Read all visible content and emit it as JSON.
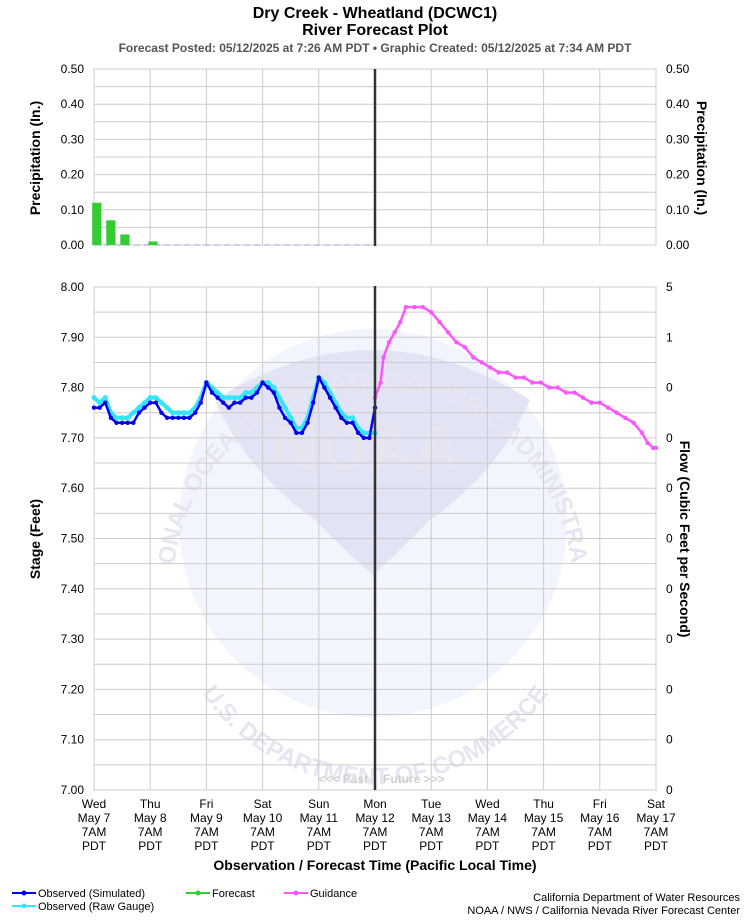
{
  "header": {
    "title": "Dry Creek - Wheatland (DCWC1)",
    "subtitle": "River Forecast Plot",
    "posted": "Forecast Posted: 05/12/2025 at 7:26 AM PDT  •  Graphic Created: 05/12/2025 at 7:34 AM PDT"
  },
  "watermark": {
    "logo_text": "NOAA",
    "ring_top": "NATIONAL OCEANIC AND ATMOSPHERIC ADMINISTRATION",
    "ring_bottom": "U.S. DEPARTMENT OF COMMERCE"
  },
  "past_future": {
    "past": "<<< Past",
    "future": "Future >>>"
  },
  "credits": {
    "line1": "California Department of Water Resources",
    "line2": "NOAA / NWS / California Nevada River Forecast Center"
  },
  "colors": {
    "observed_simulated": "#0000ee",
    "observed_raw": "#33e6ff",
    "forecast": "#33cc33",
    "guidance": "#ff55ff",
    "now_line": "#333333",
    "grid": "#cccccc"
  },
  "chart_data": [
    {
      "type": "bar",
      "panel": "precipitation",
      "ylabel": "Precipitation (In.)",
      "ylabel_right": "Precipitation (In.)",
      "ylim": [
        0,
        0.5
      ],
      "yticks": [
        "0.00",
        "0.10",
        "0.20",
        "0.30",
        "0.40",
        "0.50"
      ],
      "xlim_days": [
        0,
        10
      ],
      "bar_width_days": 0.2,
      "bars": [
        {
          "x": 0.05,
          "value": 0.12
        },
        {
          "x": 0.3,
          "value": 0.07
        },
        {
          "x": 0.55,
          "value": 0.03
        },
        {
          "x": 1.05,
          "value": 0.01
        }
      ]
    },
    {
      "type": "line",
      "panel": "stage",
      "xlabel": "Observation / Forecast Time (Pacific Local Time)",
      "ylabel": "Stage (Feet)",
      "ylabel_right": "Flow (Cubic Feet per Second)",
      "ylim": [
        7.0,
        8.0
      ],
      "yticks": [
        "7.00",
        "7.10",
        "7.20",
        "7.30",
        "7.40",
        "7.50",
        "7.60",
        "7.70",
        "7.80",
        "7.90",
        "8.00"
      ],
      "yticks_right": [
        "0",
        "0",
        "0",
        "0",
        "0",
        "0",
        "0",
        "0",
        "0",
        "1",
        "5"
      ],
      "xticks": [
        [
          "Wed",
          "May 7",
          "7AM",
          "PDT"
        ],
        [
          "Thu",
          "May 8",
          "7AM",
          "PDT"
        ],
        [
          "Fri",
          "May 9",
          "7AM",
          "PDT"
        ],
        [
          "Sat",
          "May 10",
          "7AM",
          "PDT"
        ],
        [
          "Sun",
          "May 11",
          "7AM",
          "PDT"
        ],
        [
          "Mon",
          "May 12",
          "7AM",
          "PDT"
        ],
        [
          "Tue",
          "May 13",
          "7AM",
          "PDT"
        ],
        [
          "Wed",
          "May 14",
          "7AM",
          "PDT"
        ],
        [
          "Thu",
          "May 15",
          "7AM",
          "PDT"
        ],
        [
          "Fri",
          "May 16",
          "7AM",
          "PDT"
        ],
        [
          "Sat",
          "May 17",
          "7AM",
          "PDT"
        ]
      ],
      "xlim_days": [
        0,
        10
      ],
      "now_day": 5,
      "legend": [
        {
          "name": "Observed (Simulated)",
          "color": "#0000ee"
        },
        {
          "name": "Observed (Raw Gauge)",
          "color": "#33e6ff"
        },
        {
          "name": "Forecast",
          "color": "#33cc33"
        },
        {
          "name": "Guidance",
          "color": "#ff55ff"
        }
      ],
      "series": [
        {
          "name": "Observed (Raw Gauge)",
          "color": "#33e6ff",
          "points": [
            [
              0,
              7.78
            ],
            [
              0.1,
              7.77
            ],
            [
              0.2,
              7.78
            ],
            [
              0.3,
              7.75
            ],
            [
              0.4,
              7.74
            ],
            [
              0.5,
              7.74
            ],
            [
              0.6,
              7.74
            ],
            [
              0.7,
              7.75
            ],
            [
              0.8,
              7.76
            ],
            [
              0.9,
              7.77
            ],
            [
              1.0,
              7.78
            ],
            [
              1.1,
              7.78
            ],
            [
              1.2,
              7.77
            ],
            [
              1.3,
              7.76
            ],
            [
              1.4,
              7.75
            ],
            [
              1.5,
              7.75
            ],
            [
              1.6,
              7.75
            ],
            [
              1.7,
              7.75
            ],
            [
              1.8,
              7.76
            ],
            [
              1.9,
              7.78
            ],
            [
              2.0,
              7.81
            ],
            [
              2.1,
              7.8
            ],
            [
              2.2,
              7.79
            ],
            [
              2.3,
              7.78
            ],
            [
              2.4,
              7.78
            ],
            [
              2.5,
              7.78
            ],
            [
              2.6,
              7.78
            ],
            [
              2.7,
              7.79
            ],
            [
              2.8,
              7.79
            ],
            [
              2.9,
              7.8
            ],
            [
              3.0,
              7.81
            ],
            [
              3.1,
              7.81
            ],
            [
              3.2,
              7.8
            ],
            [
              3.3,
              7.78
            ],
            [
              3.4,
              7.76
            ],
            [
              3.5,
              7.74
            ],
            [
              3.6,
              7.72
            ],
            [
              3.7,
              7.72
            ],
            [
              3.8,
              7.74
            ],
            [
              3.9,
              7.78
            ],
            [
              4.0,
              7.82
            ],
            [
              4.1,
              7.81
            ],
            [
              4.2,
              7.79
            ],
            [
              4.3,
              7.77
            ],
            [
              4.4,
              7.75
            ],
            [
              4.5,
              7.74
            ],
            [
              4.6,
              7.74
            ],
            [
              4.7,
              7.72
            ],
            [
              4.8,
              7.71
            ],
            [
              4.9,
              7.71
            ],
            [
              5.0,
              7.71
            ]
          ]
        },
        {
          "name": "Observed (Simulated)",
          "color": "#0000ee",
          "points": [
            [
              0,
              7.76
            ],
            [
              0.1,
              7.76
            ],
            [
              0.2,
              7.77
            ],
            [
              0.3,
              7.74
            ],
            [
              0.4,
              7.73
            ],
            [
              0.5,
              7.73
            ],
            [
              0.6,
              7.73
            ],
            [
              0.7,
              7.73
            ],
            [
              0.8,
              7.75
            ],
            [
              0.9,
              7.76
            ],
            [
              1.0,
              7.77
            ],
            [
              1.1,
              7.77
            ],
            [
              1.2,
              7.75
            ],
            [
              1.3,
              7.74
            ],
            [
              1.4,
              7.74
            ],
            [
              1.5,
              7.74
            ],
            [
              1.6,
              7.74
            ],
            [
              1.7,
              7.74
            ],
            [
              1.8,
              7.75
            ],
            [
              1.9,
              7.77
            ],
            [
              2.0,
              7.81
            ],
            [
              2.1,
              7.79
            ],
            [
              2.2,
              7.78
            ],
            [
              2.3,
              7.77
            ],
            [
              2.4,
              7.76
            ],
            [
              2.5,
              7.77
            ],
            [
              2.6,
              7.77
            ],
            [
              2.7,
              7.78
            ],
            [
              2.8,
              7.78
            ],
            [
              2.9,
              7.79
            ],
            [
              3.0,
              7.81
            ],
            [
              3.1,
              7.8
            ],
            [
              3.2,
              7.79
            ],
            [
              3.3,
              7.76
            ],
            [
              3.4,
              7.74
            ],
            [
              3.5,
              7.73
            ],
            [
              3.6,
              7.71
            ],
            [
              3.7,
              7.71
            ],
            [
              3.8,
              7.73
            ],
            [
              3.9,
              7.77
            ],
            [
              4.0,
              7.82
            ],
            [
              4.1,
              7.8
            ],
            [
              4.2,
              7.78
            ],
            [
              4.3,
              7.76
            ],
            [
              4.4,
              7.74
            ],
            [
              4.5,
              7.73
            ],
            [
              4.6,
              7.73
            ],
            [
              4.7,
              7.71
            ],
            [
              4.8,
              7.7
            ],
            [
              4.9,
              7.7
            ],
            [
              5.0,
              7.76
            ]
          ]
        },
        {
          "name": "Guidance",
          "color": "#ff55ff",
          "points": [
            [
              5.0,
              7.78
            ],
            [
              5.1,
              7.81
            ],
            [
              5.15,
              7.86
            ],
            [
              5.25,
              7.89
            ],
            [
              5.35,
              7.91
            ],
            [
              5.45,
              7.93
            ],
            [
              5.55,
              7.96
            ],
            [
              5.7,
              7.96
            ],
            [
              5.85,
              7.96
            ],
            [
              6.0,
              7.95
            ],
            [
              6.15,
              7.93
            ],
            [
              6.3,
              7.91
            ],
            [
              6.45,
              7.89
            ],
            [
              6.6,
              7.88
            ],
            [
              6.75,
              7.86
            ],
            [
              6.9,
              7.85
            ],
            [
              7.05,
              7.84
            ],
            [
              7.2,
              7.83
            ],
            [
              7.35,
              7.83
            ],
            [
              7.5,
              7.82
            ],
            [
              7.65,
              7.82
            ],
            [
              7.8,
              7.81
            ],
            [
              7.95,
              7.81
            ],
            [
              8.1,
              7.8
            ],
            [
              8.25,
              7.8
            ],
            [
              8.4,
              7.79
            ],
            [
              8.55,
              7.79
            ],
            [
              8.7,
              7.78
            ],
            [
              8.85,
              7.77
            ],
            [
              9.0,
              7.77
            ],
            [
              9.15,
              7.76
            ],
            [
              9.3,
              7.75
            ],
            [
              9.45,
              7.74
            ],
            [
              9.6,
              7.73
            ],
            [
              9.75,
              7.71
            ],
            [
              9.85,
              7.69
            ],
            [
              9.95,
              7.68
            ],
            [
              10.0,
              7.68
            ]
          ]
        }
      ]
    }
  ]
}
